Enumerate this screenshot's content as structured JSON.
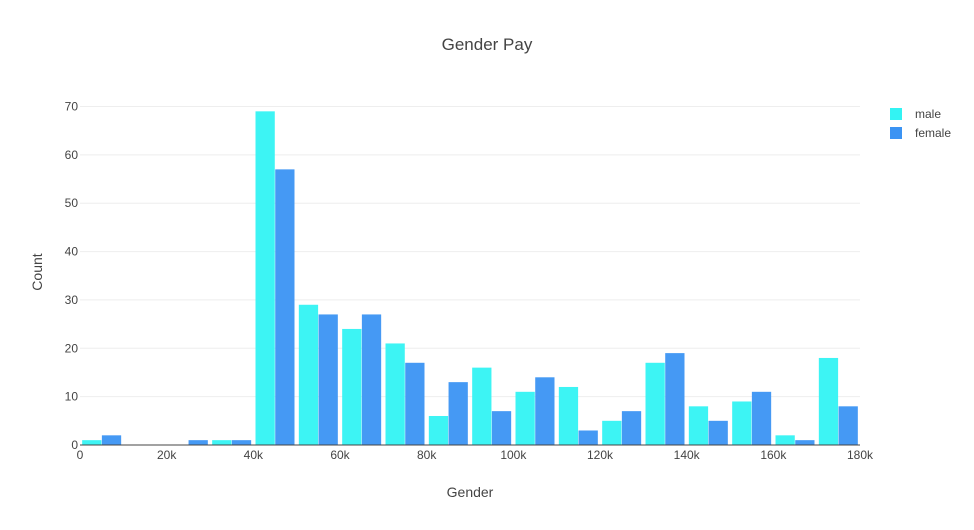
{
  "chart_data": {
    "type": "bar",
    "title": "Gender Pay",
    "xlabel": "Gender",
    "ylabel": "Count",
    "xlim": [
      0,
      180000
    ],
    "ylim": [
      0,
      73
    ],
    "x_ticks": [
      {
        "value": 0,
        "label": "0"
      },
      {
        "value": 20000,
        "label": "20k"
      },
      {
        "value": 40000,
        "label": "40k"
      },
      {
        "value": 60000,
        "label": "60k"
      },
      {
        "value": 80000,
        "label": "80k"
      },
      {
        "value": 100000,
        "label": "100k"
      },
      {
        "value": 120000,
        "label": "120k"
      },
      {
        "value": 140000,
        "label": "140k"
      },
      {
        "value": 160000,
        "label": "160k"
      },
      {
        "value": 180000,
        "label": "180k"
      }
    ],
    "y_ticks": [
      {
        "value": 0,
        "label": "0"
      },
      {
        "value": 10,
        "label": "10"
      },
      {
        "value": 20,
        "label": "20"
      },
      {
        "value": 30,
        "label": "30"
      },
      {
        "value": 40,
        "label": "40"
      },
      {
        "value": 50,
        "label": "50"
      },
      {
        "value": 60,
        "label": "60"
      },
      {
        "value": 70,
        "label": "70"
      }
    ],
    "bin_start": 0,
    "bin_size": 10000,
    "grid": true,
    "legend_position": "top-right",
    "series": [
      {
        "name": "male",
        "color": "#33f3f3",
        "values": [
          1,
          0,
          0,
          1,
          69,
          29,
          24,
          21,
          6,
          16,
          11,
          12,
          5,
          17,
          8,
          9,
          2,
          18
        ]
      },
      {
        "name": "female",
        "color": "#3b93f3",
        "values": [
          2,
          0,
          1,
          1,
          57,
          27,
          27,
          17,
          13,
          7,
          14,
          3,
          7,
          19,
          5,
          11,
          1,
          8
        ]
      }
    ]
  }
}
